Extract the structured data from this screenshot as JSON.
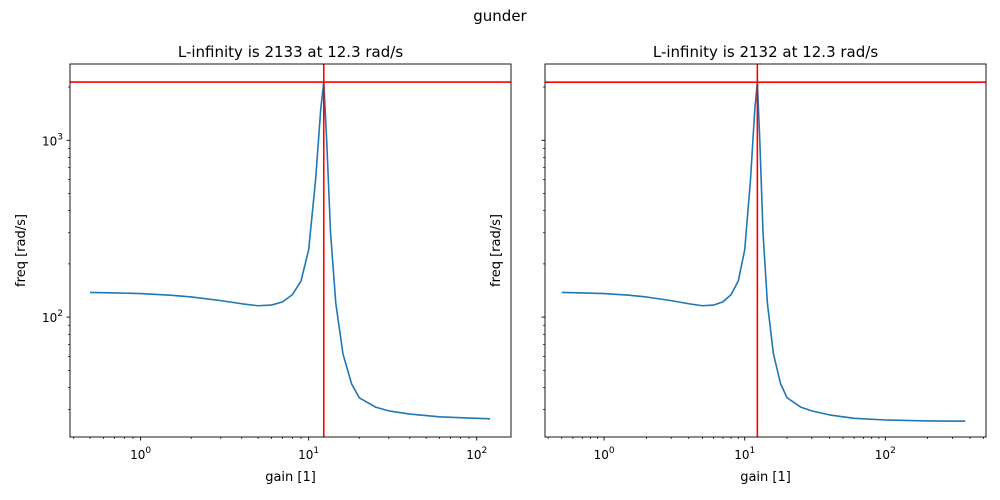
{
  "figure_title": "gunder",
  "colors": {
    "curve": "#1f77b4",
    "marker": "#ff0000",
    "axes": "#000000"
  },
  "chart_data": [
    {
      "type": "line",
      "title": "L-infinity is 2133 at 12.3 rad/s",
      "xlabel": "gain [1]",
      "ylabel": "freq [rad/s]",
      "xscale": "log",
      "yscale": "log",
      "xlim": [
        0.38,
        160
      ],
      "ylim": [
        21,
        2700
      ],
      "xticks": [
        {
          "value": 1,
          "base": "10",
          "exp": "0"
        },
        {
          "value": 10,
          "base": "10",
          "exp": "1"
        },
        {
          "value": 100,
          "base": "10",
          "exp": "2"
        }
      ],
      "yticks": [
        {
          "value": 100,
          "base": "10",
          "exp": "2"
        },
        {
          "value": 1000,
          "base": "10",
          "exp": "3"
        }
      ],
      "show_ytick_labels": true,
      "grid": false,
      "vline": 12.3,
      "hline": 2133,
      "series": [
        {
          "x": [
            0.5,
            0.7,
            1.0,
            1.5,
            2.0,
            3.0,
            4.0,
            5.0,
            6.0,
            7.0,
            8.0,
            9.0,
            10.0,
            11.0,
            11.8,
            12.3,
            12.8,
            13.5,
            14.5,
            16.0,
            18.0,
            20.0,
            25.0,
            30.0,
            40.0,
            60.0,
            80.0,
            120.0
          ],
          "y": [
            138,
            137,
            136,
            133,
            130,
            124,
            119,
            116,
            117,
            122,
            134,
            160,
            240,
            600,
            1500,
            2133,
            1000,
            300,
            120,
            62,
            42,
            35,
            31,
            29.5,
            28.3,
            27.3,
            27.0,
            26.6
          ]
        }
      ]
    },
    {
      "type": "line",
      "title": "L-infinity is 2132 at 12.3 rad/s",
      "xlabel": "gain [1]",
      "ylabel": "freq [rad/s]",
      "xscale": "log",
      "yscale": "log",
      "xlim": [
        0.38,
        520
      ],
      "ylim": [
        21,
        2700
      ],
      "xticks": [
        {
          "value": 1,
          "base": "10",
          "exp": "0"
        },
        {
          "value": 10,
          "base": "10",
          "exp": "1"
        },
        {
          "value": 100,
          "base": "10",
          "exp": "2"
        }
      ],
      "yticks": [
        {
          "value": 100,
          "base": "10",
          "exp": "2"
        },
        {
          "value": 1000,
          "base": "10",
          "exp": "3"
        }
      ],
      "show_ytick_labels": false,
      "grid": false,
      "vline": 12.3,
      "hline": 2132,
      "series": [
        {
          "x": [
            0.5,
            0.7,
            1.0,
            1.5,
            2.0,
            3.0,
            4.0,
            5.0,
            6.0,
            7.0,
            8.0,
            9.0,
            10.0,
            11.0,
            11.8,
            12.3,
            12.8,
            13.5,
            14.5,
            16.0,
            18.0,
            20.0,
            25.0,
            30.0,
            40.0,
            60.0,
            100.0,
            200.0,
            370.0
          ],
          "y": [
            138,
            137,
            136,
            133,
            130,
            124,
            119,
            116,
            117,
            122,
            134,
            160,
            240,
            600,
            1500,
            2132,
            1000,
            300,
            120,
            62,
            42,
            35,
            31,
            29.5,
            28.0,
            26.8,
            26.2,
            25.9,
            25.8
          ]
        }
      ]
    }
  ]
}
